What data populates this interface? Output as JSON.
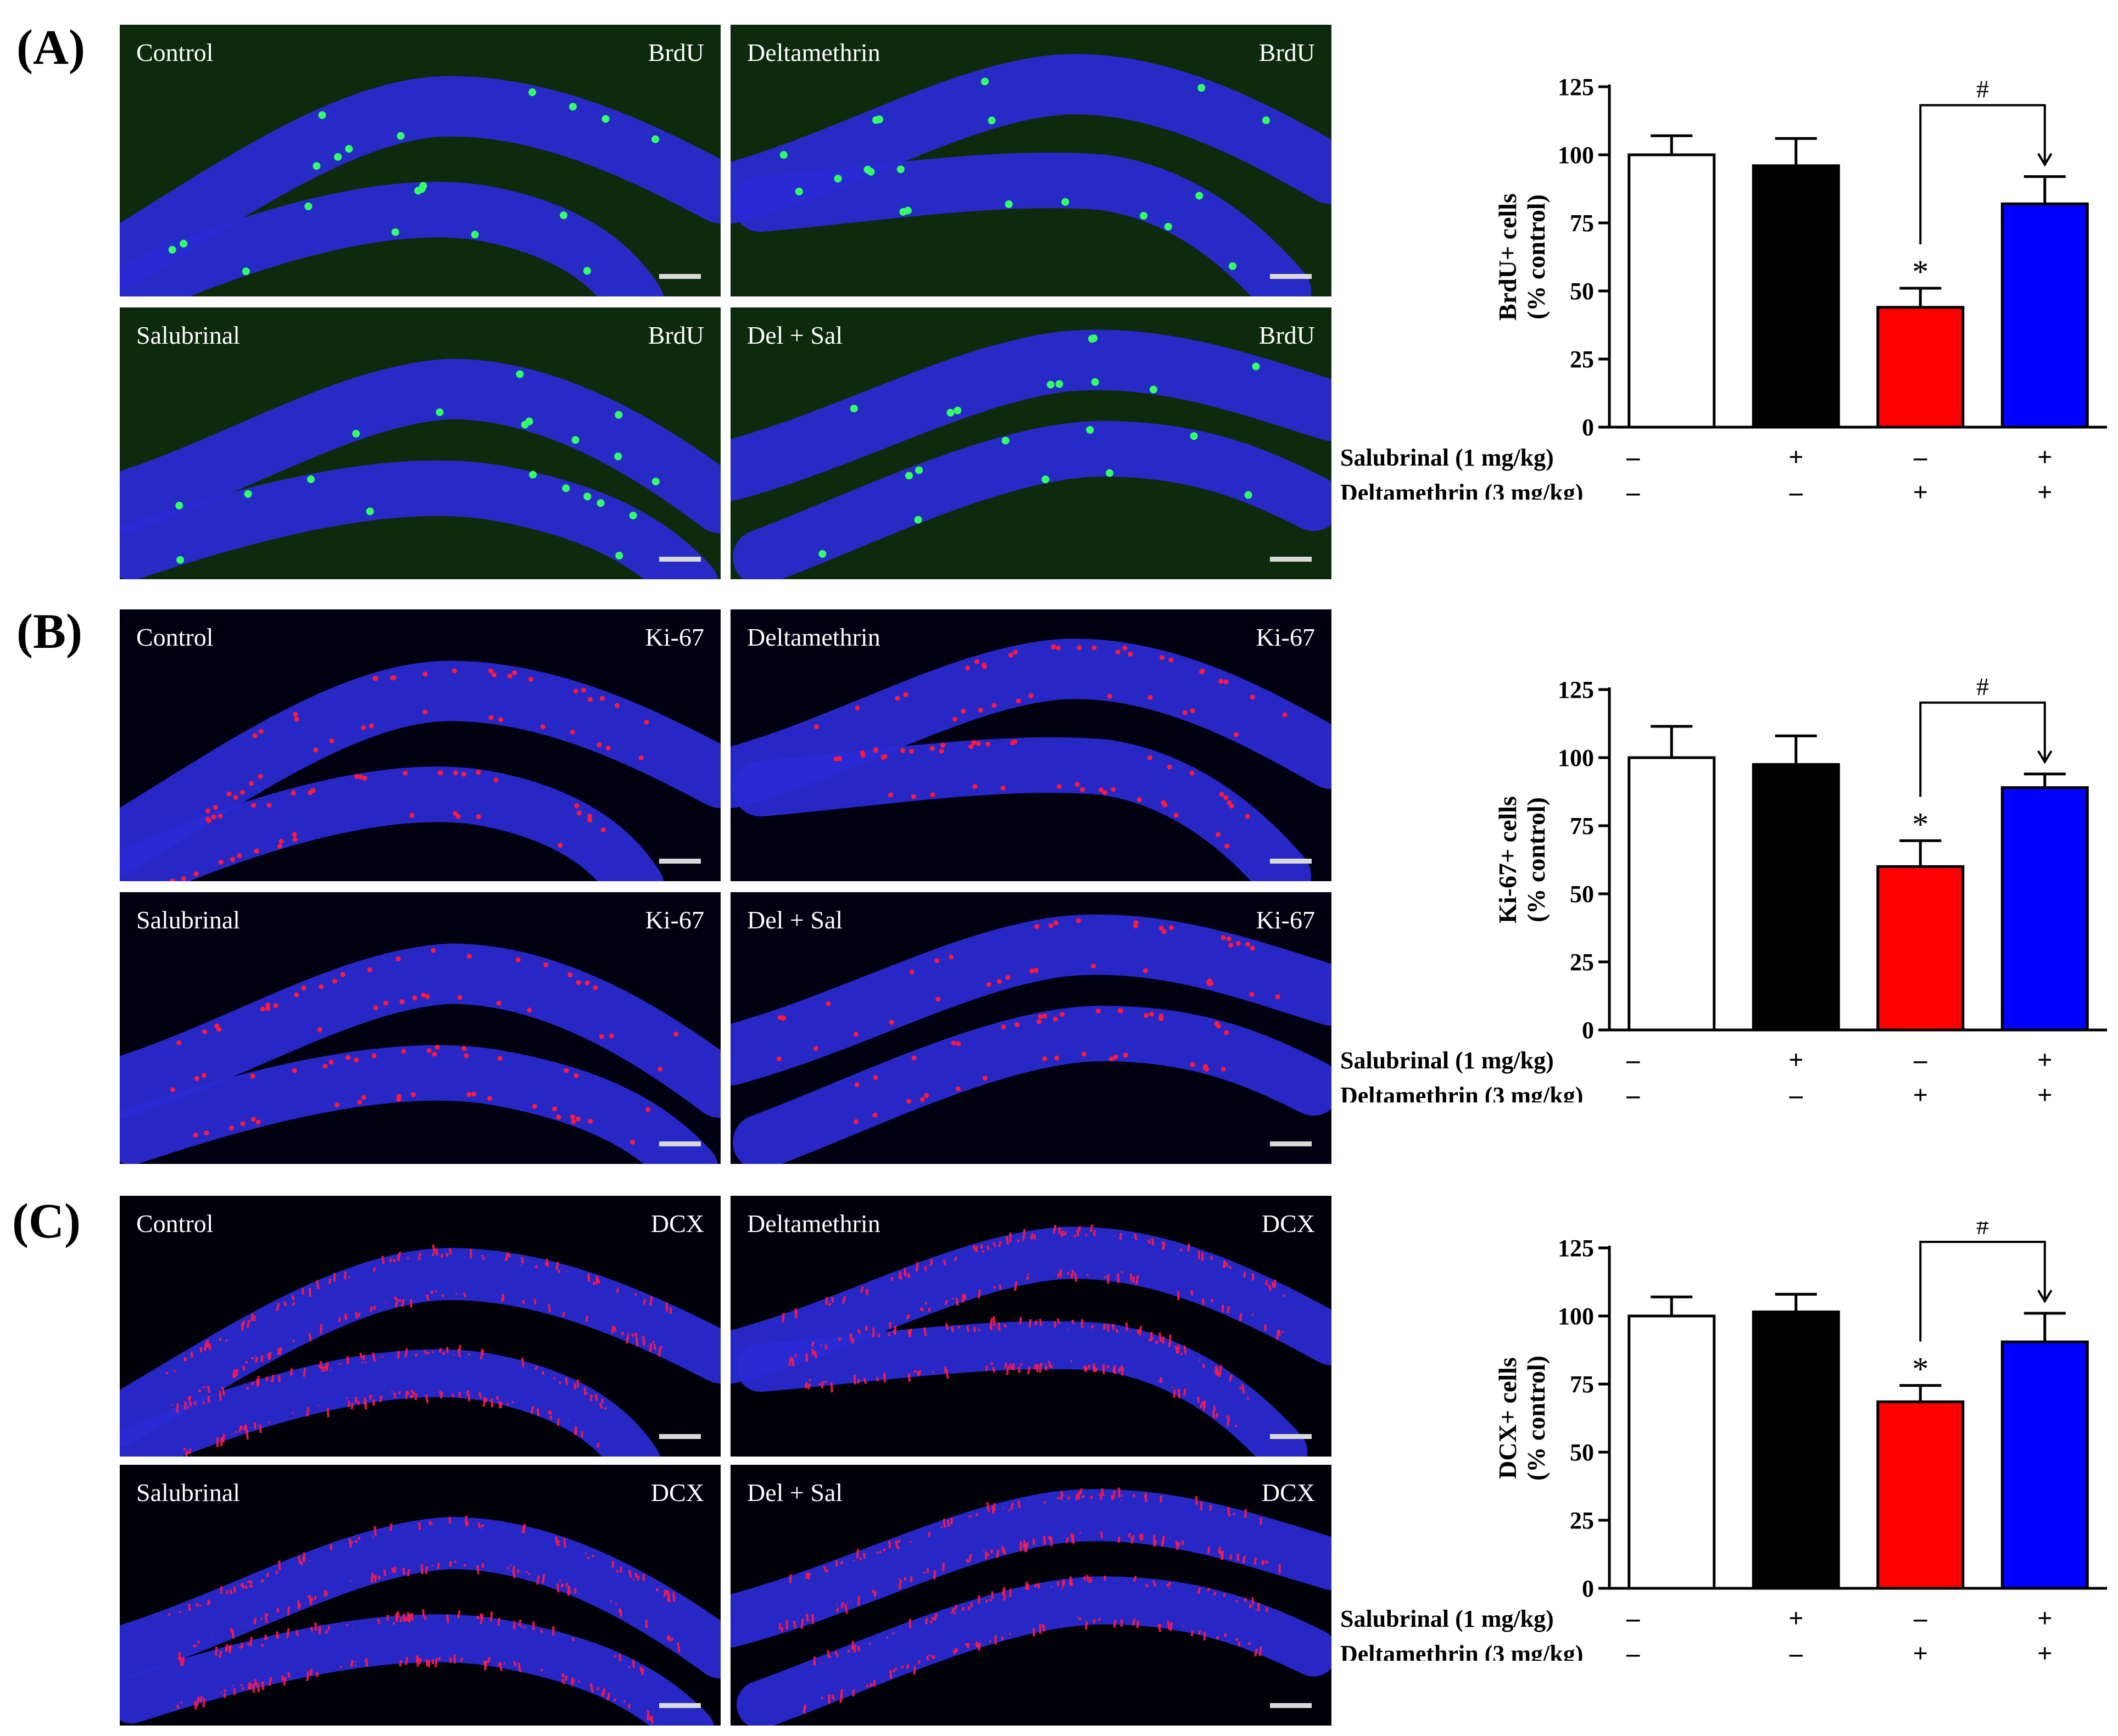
{
  "panels": [
    {
      "letter": "(A)",
      "marker": "BrdU",
      "marker_color": "#33ff66",
      "background_color": "#0d2a0d",
      "images": [
        {
          "group": "Control",
          "marker": "BrdU"
        },
        {
          "group": "Deltamethrin",
          "marker": "BrdU"
        },
        {
          "group": "Salubrinal",
          "marker": "BrdU"
        },
        {
          "group": "Del + Sal",
          "marker": "BrdU"
        }
      ]
    },
    {
      "letter": "(B)",
      "marker": "Ki-67",
      "marker_color": "#ff1a3c",
      "background_color": "#000010",
      "images": [
        {
          "group": "Control",
          "marker": "Ki-67"
        },
        {
          "group": "Deltamethrin",
          "marker": "Ki-67"
        },
        {
          "group": "Salubrinal",
          "marker": "Ki-67"
        },
        {
          "group": "Del + Sal",
          "marker": "Ki-67"
        }
      ]
    },
    {
      "letter": "(C)",
      "marker": "DCX",
      "marker_color": "#ff1a4a",
      "background_color": "#000008",
      "images": [
        {
          "group": "Control",
          "marker": "DCX"
        },
        {
          "group": "Deltamethrin",
          "marker": "DCX"
        },
        {
          "group": "Salubrinal",
          "marker": "DCX"
        },
        {
          "group": "Del + Sal",
          "marker": "DCX"
        }
      ]
    }
  ],
  "chart_data": [
    {
      "type": "bar",
      "ylabel_line1": "BrdU+ cells",
      "ylabel_line2": "(% control)",
      "ylim": [
        0,
        125
      ],
      "yticks": [
        0,
        25,
        50,
        75,
        100,
        125
      ],
      "categories": [
        "Control",
        "Salubrinal",
        "Deltamethrin",
        "Del + Sal"
      ],
      "values": [
        100,
        96,
        44,
        82
      ],
      "errors": [
        7,
        10,
        7,
        10
      ],
      "colors": [
        "#ffffff",
        "#000000",
        "#ff0000",
        "#0000ff"
      ],
      "significance": {
        "star": "*",
        "star_bar": 2,
        "hash": "#",
        "hash_bars": [
          2,
          3
        ]
      },
      "treatments": [
        {
          "label": "Salubrinal (1 mg/kg)",
          "signs": [
            "–",
            "+",
            "–",
            "+"
          ]
        },
        {
          "label": "Deltamethrin (3 mg/kg)",
          "signs": [
            "–",
            "–",
            "+",
            "+"
          ]
        }
      ]
    },
    {
      "type": "bar",
      "ylabel_line1": "Ki-67+ cells",
      "ylabel_line2": "(% control)",
      "ylim": [
        0,
        125
      ],
      "yticks": [
        0,
        25,
        50,
        75,
        100,
        125
      ],
      "categories": [
        "Control",
        "Salubrinal",
        "Deltamethrin",
        "Del + Sal"
      ],
      "values": [
        100,
        97.5,
        60,
        89
      ],
      "errors": [
        11.5,
        10.5,
        9.5,
        5
      ],
      "colors": [
        "#ffffff",
        "#000000",
        "#ff0000",
        "#0000ff"
      ],
      "significance": {
        "star": "*",
        "star_bar": 2,
        "hash": "#",
        "hash_bars": [
          2,
          3
        ]
      },
      "treatments": [
        {
          "label": "Salubrinal (1 mg/kg)",
          "signs": [
            "–",
            "+",
            "–",
            "+"
          ]
        },
        {
          "label": "Deltamethrin (3 mg/kg)",
          "signs": [
            "–",
            "–",
            "+",
            "+"
          ]
        }
      ]
    },
    {
      "type": "bar",
      "ylabel_line1": "DCX+ cells",
      "ylabel_line2": "(% control)",
      "ylim": [
        0,
        125
      ],
      "yticks": [
        0,
        25,
        50,
        75,
        100,
        125
      ],
      "categories": [
        "Control",
        "Salubrinal",
        "Deltamethrin",
        "Del + Sal"
      ],
      "values": [
        100,
        101.5,
        68.5,
        90.5
      ],
      "errors": [
        7,
        6.5,
        6,
        10.5
      ],
      "colors": [
        "#ffffff",
        "#000000",
        "#ff0000",
        "#0000ff"
      ],
      "significance": {
        "star": "*",
        "star_bar": 2,
        "hash": "#",
        "hash_bars": [
          2,
          3
        ]
      },
      "treatments": [
        {
          "label": "Salubrinal (1 mg/kg)",
          "signs": [
            "–",
            "+",
            "–",
            "+"
          ]
        },
        {
          "label": "Deltamethrin (3 mg/kg)",
          "signs": [
            "–",
            "–",
            "+",
            "+"
          ]
        }
      ]
    }
  ]
}
